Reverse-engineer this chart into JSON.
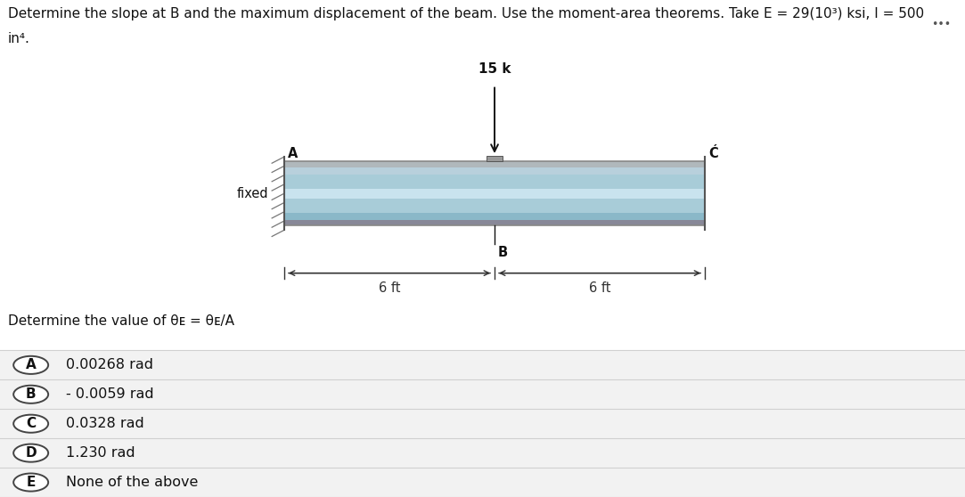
{
  "title_line1": "Determine the slope at B and the maximum displacement of the beam. Use the moment-area theorems. Take E = 29(10³) ksi, I = 500",
  "title_line2": "in⁴.",
  "question_label": "Determine the value of θᴇ = θᴇ/A",
  "load_label": "15 k",
  "fixed_label": "fixed",
  "label_A": "A",
  "label_B": "B",
  "label_C": "Ć",
  "dim_left": "6 ft",
  "dim_right": "6 ft",
  "options": [
    {
      "letter": "A",
      "text": "0.00268 rad"
    },
    {
      "letter": "B",
      "text": "- 0.0059 rad"
    },
    {
      "letter": "C",
      "text": "0.0328 rad"
    },
    {
      "letter": "D",
      "text": "1.230 rad"
    },
    {
      "letter": "E",
      "text": "None of the above"
    }
  ],
  "beam_color_light": "#c8dfe8",
  "beam_color_mid": "#a8ccd8",
  "beam_color_dark": "#7aaabb",
  "beam_color_stripe": "#90b8c8",
  "beam_border": "#888888",
  "bg_color": "#ffffff",
  "bg_gray": "#f5f5f5",
  "option_bg": "#f2f2f2",
  "sep_color": "#d0d0d0",
  "dots_color": "#555555",
  "wall_color": "#cccccc",
  "wall_border": "#999999",
  "text_color": "#111111",
  "dim_color": "#333333",
  "title_fontsize": 11.0,
  "option_fontsize": 11.5,
  "label_fontsize": 10.5,
  "question_fontsize": 11.0
}
